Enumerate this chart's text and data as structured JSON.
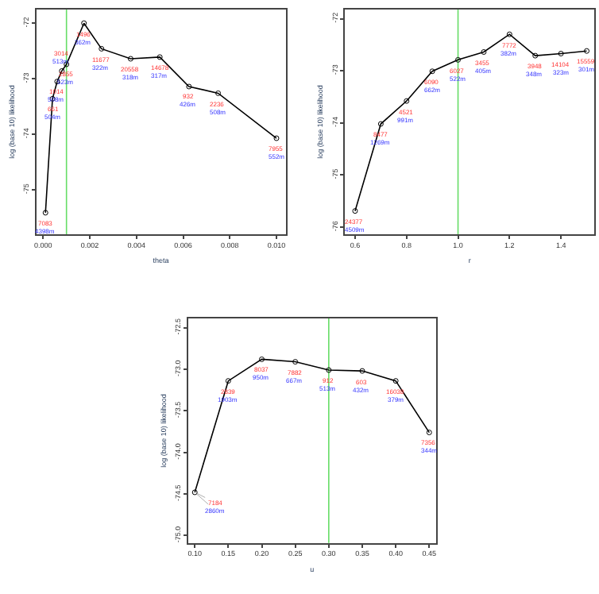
{
  "chart_data": [
    {
      "type": "line",
      "xlabel": "theta",
      "ylabel": "log (base 10) likelihood",
      "marker": "circle",
      "x": [
        0.0001,
        0.0004,
        0.0006,
        0.0008,
        0.001,
        0.00175,
        0.0025,
        0.00375,
        0.005,
        0.00625,
        0.0075,
        0.01
      ],
      "xlim": [
        -0.0003,
        0.0104
      ],
      "xticks": [
        {
          "value": 0,
          "label": "0.000"
        },
        0.002,
        0.004,
        0.006,
        0.008,
        {
          "value": 0.01,
          "label": "0.010"
        }
      ],
      "ylim": [
        -75.8,
        -71.75
      ],
      "yticks": [
        -75,
        -74,
        -73,
        -72
      ],
      "series": [
        {
          "color": "#000000",
          "values": [
            -75.41,
            -73.36,
            -73.05,
            -72.86,
            -72.74,
            -72.0,
            -72.46,
            -72.64,
            -72.61,
            -73.14,
            -73.26,
            -74.07
          ]
        }
      ],
      "annotations": [
        {
          "text": "7083",
          "x": 0.0001,
          "y": -75.41
        },
        {
          "text": "4398m",
          "x": 0.0001,
          "y": -75.41
        },
        {
          "text": "661",
          "x": 0.0004,
          "y": -73.36
        },
        {
          "text": "504m",
          "x": 0.0004,
          "y": -73.36
        },
        {
          "text": "1014",
          "x": 0.0006,
          "y": -73.05
        },
        {
          "text": "508m",
          "x": 0.0006,
          "y": -73.05
        },
        {
          "text": "3014",
          "x": 0.0008,
          "y": -72.86
        },
        {
          "text": "513m",
          "x": 0.0008,
          "y": -72.86
        },
        {
          "text": "2855",
          "x": 0.001,
          "y": -72.74
        },
        {
          "text": "523m",
          "x": 0.001,
          "y": -72.74
        },
        {
          "text": "1496",
          "x": 0.00175,
          "y": -72.0
        },
        {
          "text": "362m",
          "x": 0.00175,
          "y": -72.0
        },
        {
          "text": "11677",
          "x": 0.0025,
          "y": -72.46
        },
        {
          "text": "322m",
          "x": 0.0025,
          "y": -72.46
        },
        {
          "text": "20558",
          "x": 0.00375,
          "y": -72.64
        },
        {
          "text": "318m",
          "x": 0.00375,
          "y": -72.64
        },
        {
          "text": "14678",
          "x": 0.005,
          "y": -72.61
        },
        {
          "text": "317m",
          "x": 0.005,
          "y": -72.61
        },
        {
          "text": "932",
          "x": 0.00625,
          "y": -73.14
        },
        {
          "text": "426m",
          "x": 0.00625,
          "y": -73.14
        },
        {
          "text": "2236",
          "x": 0.0075,
          "y": -73.26
        },
        {
          "text": "508m",
          "x": 0.0075,
          "y": -73.26
        },
        {
          "text": "7955",
          "x": 0.01,
          "y": -74.07
        },
        {
          "text": "552m",
          "x": 0.01,
          "y": -74.07
        }
      ],
      "ref_lines": [
        {
          "axis": "x",
          "value": 0.001,
          "color": "#66dd66"
        }
      ]
    },
    {
      "type": "line",
      "xlabel": "r",
      "ylabel": "log (base 10) likelihood",
      "marker": "circle",
      "x": [
        0.6,
        0.7,
        0.8,
        0.9,
        1.0,
        1.1,
        1.2,
        1.3,
        1.4,
        1.5
      ],
      "xlim": [
        0.56,
        1.53
      ],
      "xticks": [
        0.6,
        0.8,
        {
          "value": 1.0,
          "label": "1.0"
        },
        1.2,
        1.4
      ],
      "ylim": [
        -76.14,
        -71.82
      ],
      "yticks": [
        -76,
        -75,
        -74,
        -73,
        -72
      ],
      "series": [
        {
          "color": "#000000",
          "values": [
            -75.69,
            -74.02,
            -73.58,
            -73.01,
            -72.79,
            -72.64,
            -72.3,
            -72.71,
            -72.67,
            -72.62
          ]
        }
      ],
      "annotations": [
        {
          "text": "24377",
          "x": 0.6,
          "y": -75.69
        },
        {
          "text": "4509m",
          "x": 0.6,
          "y": -75.69
        },
        {
          "text": "8477",
          "x": 0.7,
          "y": -74.02
        },
        {
          "text": "1269m",
          "x": 0.7,
          "y": -74.02
        },
        {
          "text": "4521",
          "x": 0.8,
          "y": -73.58
        },
        {
          "text": "991m",
          "x": 0.8,
          "y": -73.58
        },
        {
          "text": "6090",
          "x": 0.9,
          "y": -73.01
        },
        {
          "text": "662m",
          "x": 0.9,
          "y": -73.01
        },
        {
          "text": "6027",
          "x": 1.0,
          "y": -72.79
        },
        {
          "text": "522m",
          "x": 1.0,
          "y": -72.79
        },
        {
          "text": "3455",
          "x": 1.1,
          "y": -72.64
        },
        {
          "text": "405m",
          "x": 1.1,
          "y": -72.64
        },
        {
          "text": "7772",
          "x": 1.2,
          "y": -72.3
        },
        {
          "text": "382m",
          "x": 1.2,
          "y": -72.3
        },
        {
          "text": "3948",
          "x": 1.3,
          "y": -72.71
        },
        {
          "text": "348m",
          "x": 1.3,
          "y": -72.71
        },
        {
          "text": "14104",
          "x": 1.4,
          "y": -72.67
        },
        {
          "text": "323m",
          "x": 1.4,
          "y": -72.67
        },
        {
          "text": "15559",
          "x": 1.5,
          "y": -72.62
        },
        {
          "text": "301m",
          "x": 1.5,
          "y": -72.62
        }
      ],
      "ref_lines": [
        {
          "axis": "x",
          "value": 1.0,
          "color": "#66dd66"
        }
      ]
    },
    {
      "type": "line",
      "xlabel": "u",
      "ylabel": "log (base 10) likelihood",
      "marker": "circle",
      "x": [
        0.1,
        0.15,
        0.2,
        0.25,
        0.3,
        0.35,
        0.4,
        0.45
      ],
      "xlim": [
        0.09,
        0.46
      ],
      "xticks": [
        {
          "value": 0.1,
          "label": "0.10"
        },
        0.15,
        {
          "value": 0.2,
          "label": "0.20"
        },
        0.25,
        {
          "value": 0.3,
          "label": "0.30"
        },
        0.35,
        {
          "value": 0.4,
          "label": "0.40"
        },
        0.45
      ],
      "ylim": [
        -75.09,
        -72.39
      ],
      "yticks": [
        {
          "value": -75,
          "label": "-75.0"
        },
        -74.5,
        {
          "value": -74,
          "label": "-74.0"
        },
        -73.5,
        {
          "value": -73,
          "label": "-73.0"
        },
        -72.5
      ],
      "series": [
        {
          "color": "#000000",
          "values": [
            -74.48,
            -73.14,
            -72.88,
            -72.91,
            -73.01,
            -73.02,
            -73.14,
            -73.76
          ]
        }
      ],
      "annotations": [
        {
          "text": "7184",
          "x": 0.1,
          "y": -74.48
        },
        {
          "text": "2860m",
          "x": 0.1,
          "y": -74.48
        },
        {
          "text": "2839",
          "x": 0.15,
          "y": -73.14
        },
        {
          "text": "1903m",
          "x": 0.15,
          "y": -73.14
        },
        {
          "text": "8037",
          "x": 0.2,
          "y": -72.88
        },
        {
          "text": "950m",
          "x": 0.2,
          "y": -72.88
        },
        {
          "text": "7882",
          "x": 0.25,
          "y": -72.91
        },
        {
          "text": "667m",
          "x": 0.25,
          "y": -72.91
        },
        {
          "text": "912",
          "x": 0.3,
          "y": -73.01
        },
        {
          "text": "513m",
          "x": 0.3,
          "y": -73.01
        },
        {
          "text": "603",
          "x": 0.35,
          "y": -73.02
        },
        {
          "text": "432m",
          "x": 0.35,
          "y": -73.02
        },
        {
          "text": "16038",
          "x": 0.4,
          "y": -73.14
        },
        {
          "text": "379m",
          "x": 0.4,
          "y": -73.14
        },
        {
          "text": "7356",
          "x": 0.45,
          "y": -73.76
        },
        {
          "text": "344m",
          "x": 0.45,
          "y": -73.76
        }
      ],
      "ref_lines": [
        {
          "axis": "x",
          "value": 0.3,
          "color": "#66dd66"
        }
      ]
    }
  ]
}
